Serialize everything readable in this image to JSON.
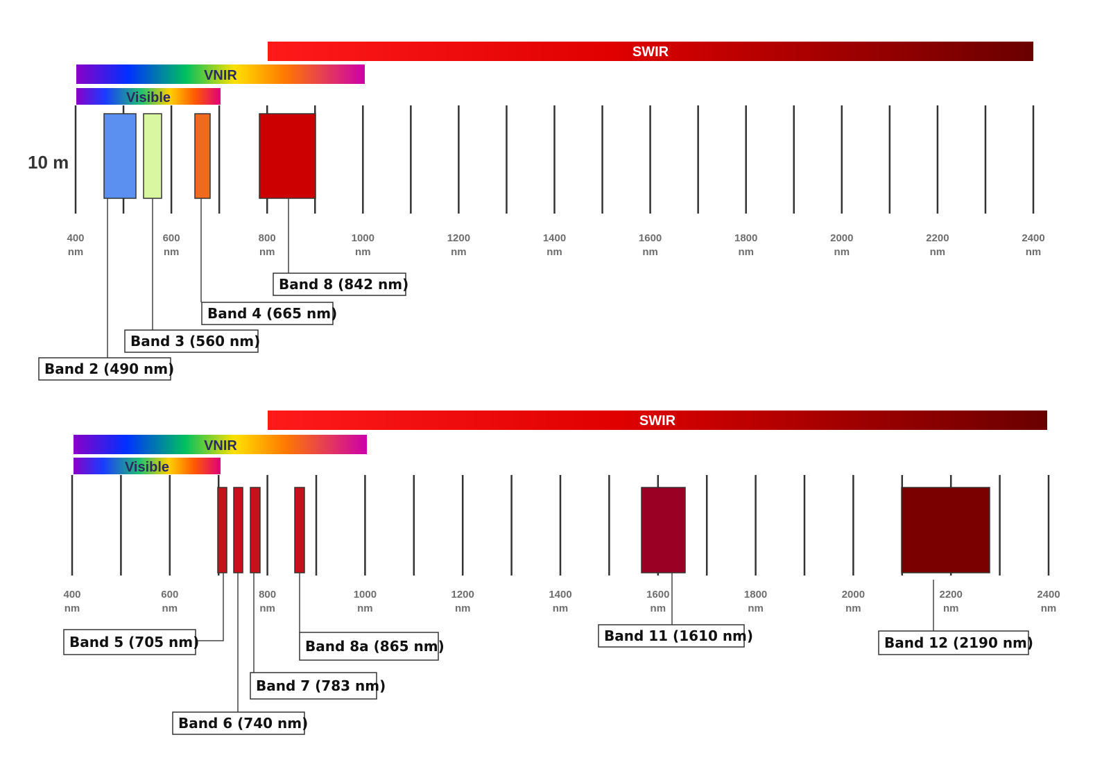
{
  "resolution_label": "10 m",
  "ranges": {
    "swir": "SWIR",
    "vnir": "VNIR",
    "visible": "Visible"
  },
  "colors": {
    "blue_band": "#5b8ff0",
    "green_band": "#d8f7a0",
    "orange_band": "#f06a1e",
    "red_band": "#cc0000",
    "red_edge_band": "#c8101a",
    "swir1_band": "#9a0024",
    "swir2_band": "#7a0000",
    "swir_bar_start": "#ff1a1a",
    "swir_bar_end": "#6a0000"
  },
  "panels": [
    {
      "axis_ticks": [
        {
          "value": "400",
          "unit": "nm"
        },
        {
          "value": "600",
          "unit": "nm"
        },
        {
          "value": "800",
          "unit": "nm"
        },
        {
          "value": "1000",
          "unit": "nm"
        },
        {
          "value": "1200",
          "unit": "nm"
        },
        {
          "value": "1400",
          "unit": "nm"
        },
        {
          "value": "1600",
          "unit": "nm"
        },
        {
          "value": "1800",
          "unit": "nm"
        },
        {
          "value": "2000",
          "unit": "nm"
        },
        {
          "value": "2200",
          "unit": "nm"
        },
        {
          "value": "2400",
          "unit": "nm"
        }
      ],
      "bands": [
        {
          "label": "Band 2 (490 nm)",
          "center_nm": 490,
          "color": "#5b8ff0"
        },
        {
          "label": "Band 3 (560 nm)",
          "center_nm": 560,
          "color": "#d8f7a0"
        },
        {
          "label": "Band 4 (665 nm)",
          "center_nm": 665,
          "color": "#f06a1e"
        },
        {
          "label": "Band 8 (842 nm)",
          "center_nm": 842,
          "color": "#cc0000"
        }
      ]
    },
    {
      "axis_ticks": [
        {
          "value": "400",
          "unit": "nm"
        },
        {
          "value": "600",
          "unit": "nm"
        },
        {
          "value": "800",
          "unit": "nm"
        },
        {
          "value": "1000",
          "unit": "nm"
        },
        {
          "value": "1200",
          "unit": "nm"
        },
        {
          "value": "1400",
          "unit": "nm"
        },
        {
          "value": "1600",
          "unit": "nm"
        },
        {
          "value": "1800",
          "unit": "nm"
        },
        {
          "value": "2000",
          "unit": "nm"
        },
        {
          "value": "2200",
          "unit": "nm"
        },
        {
          "value": "2400",
          "unit": "nm"
        }
      ],
      "bands": [
        {
          "label": "Band 5 (705 nm)",
          "center_nm": 705,
          "color": "#c8101a"
        },
        {
          "label": "Band 6 (740 nm)",
          "center_nm": 740,
          "color": "#c8101a"
        },
        {
          "label": "Band 7 (783 nm)",
          "center_nm": 783,
          "color": "#c8101a"
        },
        {
          "label": "Band 8a  (865 nm)",
          "center_nm": 865,
          "color": "#c8101a"
        },
        {
          "label": "Band 11 (1610 nm)",
          "center_nm": 1610,
          "color": "#9a0024"
        },
        {
          "label": "Band 12 (2190 nm)",
          "center_nm": 2190,
          "color": "#7a0000"
        }
      ]
    }
  ]
}
